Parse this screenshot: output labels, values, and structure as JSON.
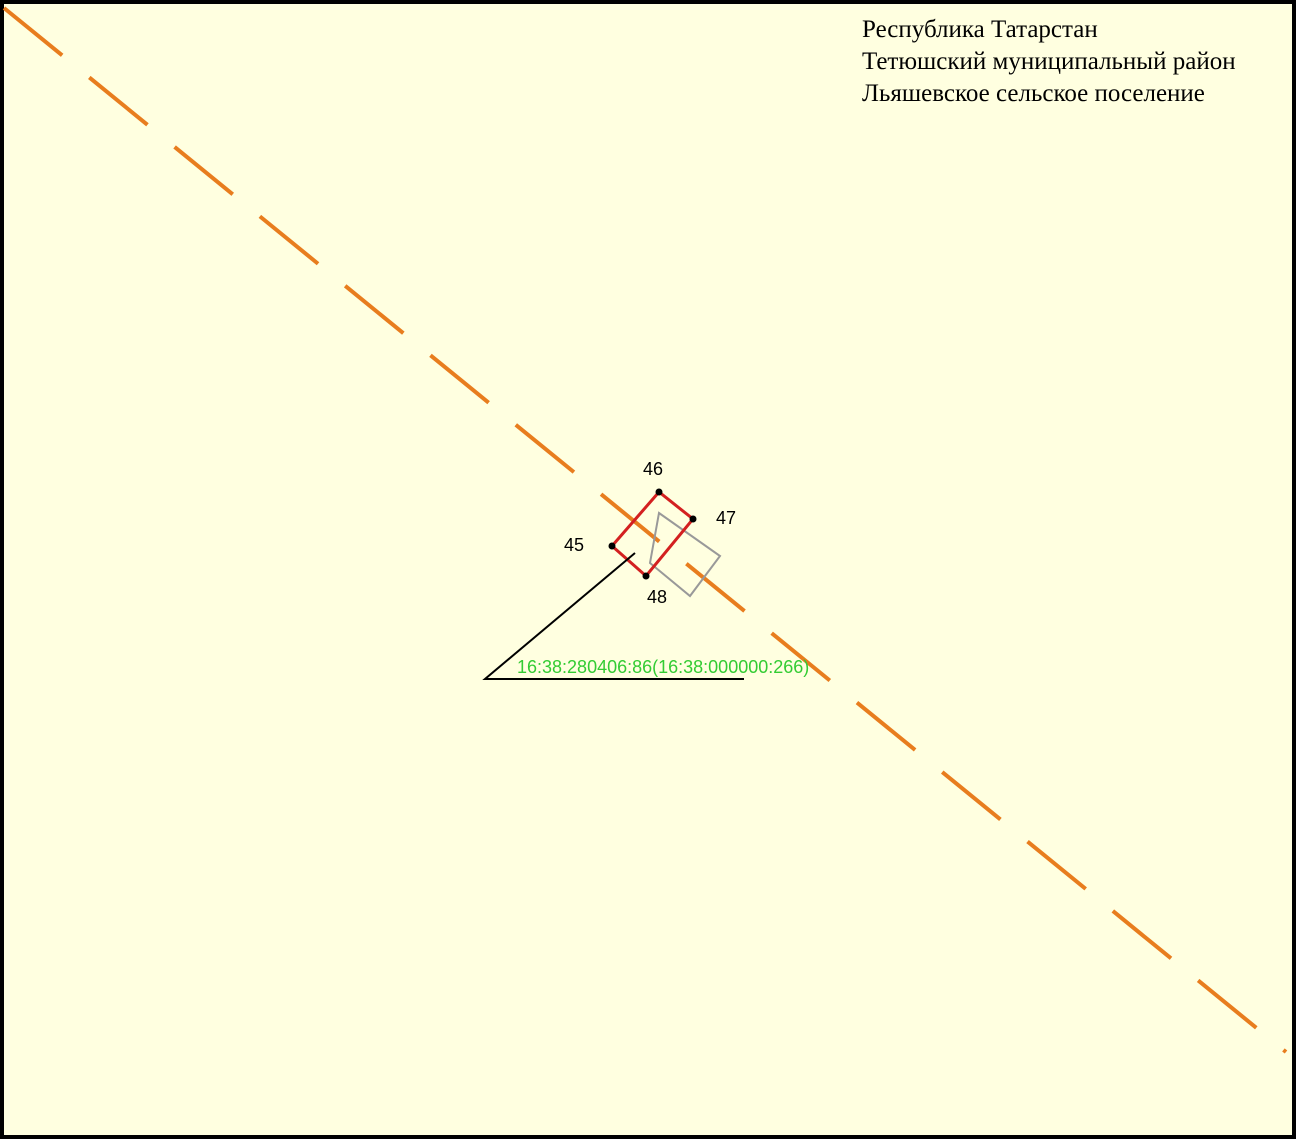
{
  "header": {
    "lines": [
      "Республика Татарстан",
      "Тетюшский муниципальный район",
      "Льяшевское сельское поселение"
    ]
  },
  "points": [
    {
      "label": "45"
    },
    {
      "label": "46"
    },
    {
      "label": "47"
    },
    {
      "label": "48"
    }
  ],
  "parcel": {
    "label": "16:38:280406:86(16:38:000000:266)"
  }
}
